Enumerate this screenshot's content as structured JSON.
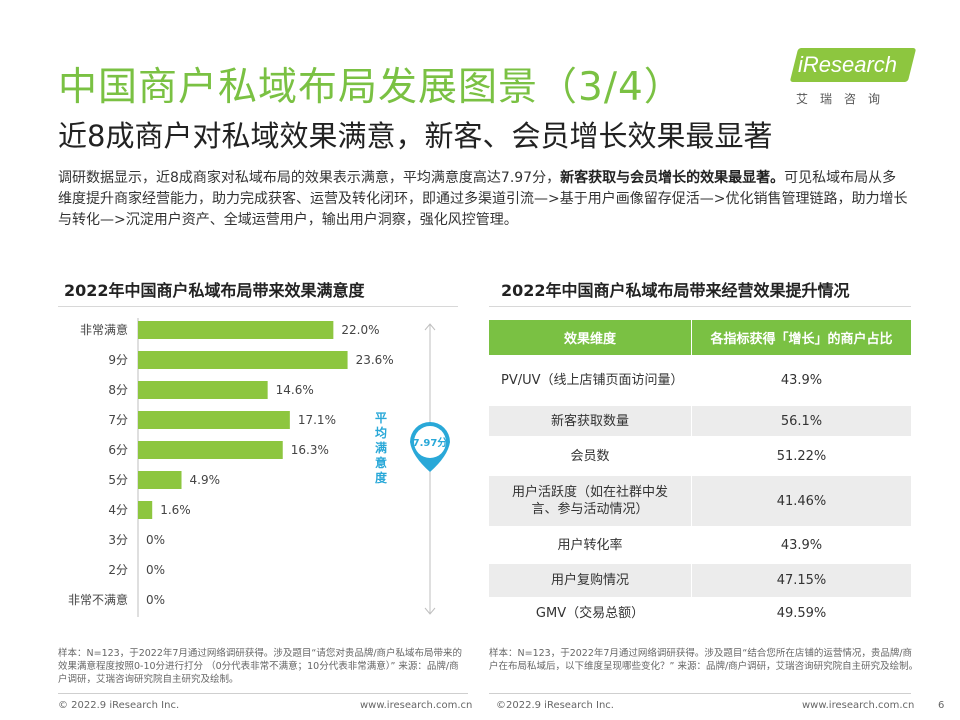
{
  "header": {
    "title": "中国商户私域布局发展图景（3/4）",
    "subtitle": "近8成商户对私域效果满意，新客、会员增长效果最显著",
    "intro_part1": "调研数据显示，近8成商家对私域布局的效果表示满意，平均满意度高达7.97分，",
    "intro_bold": "新客获取与会员增长的效果最显著。",
    "intro_part2": "可见私域布局从多维度提升商家经营能力，助力完成获客、运营及转化闭环，即通过多渠道引流—>基于用户画像留存促活—>优化销售管理链路，助力增长与转化—>沉淀用户资产、全域运营用户，输出用户洞察，强化风控管理。"
  },
  "logo": {
    "brand": "iResearch",
    "sub": "艾瑞咨询"
  },
  "left_section": {
    "title": "2022年中国商户私域布局带来效果满意度",
    "note": "样本：N=123，于2022年7月通过网络调研获得。涉及题目“请您对贵品牌/商户私域布局带来的效果满意程度按照0-10分进行打分 （0分代表非常不满意；10分代表非常满意）” 来源：品牌/商户调研，艾瑞咨询研究院自主研究及绘制。"
  },
  "chart_data": {
    "type": "bar",
    "orientation": "horizontal",
    "categories": [
      "非常满意",
      "9分",
      "8分",
      "7分",
      "6分",
      "5分",
      "4分",
      "3分",
      "2分",
      "非常不满意"
    ],
    "values": [
      22.0,
      23.6,
      14.6,
      17.1,
      16.3,
      4.9,
      1.6,
      0,
      0,
      0
    ],
    "data_labels": [
      "22.0%",
      "23.6%",
      "14.6%",
      "17.1%",
      "16.3%",
      "4.9%",
      "1.6%",
      "0%",
      "0%",
      "0%"
    ],
    "bar_color": "#8dc63f",
    "xlim": [
      0,
      25
    ],
    "average_label": "平均满意度",
    "average_value": "7.97分",
    "average_color": "#29a8d8"
  },
  "right_section": {
    "title": "2022年中国商户私域布局带来经营效果提升情况",
    "table": {
      "headers": [
        "效果维度",
        "各指标获得「增长」的商户占比"
      ],
      "rows": [
        [
          "PV/UV（线上店铺页面访问量）",
          "43.9%"
        ],
        [
          "新客获取数量",
          "56.1%"
        ],
        [
          "会员数",
          "51.22%"
        ],
        [
          "用户活跃度（如在社群中发言、参与活动情况）",
          "41.46%"
        ],
        [
          "用户转化率",
          "43.9%"
        ],
        [
          "用户复购情况",
          "47.15%"
        ],
        [
          "GMV（交易总额）",
          "49.59%"
        ]
      ]
    },
    "note": "样本：N=123，于2022年7月通过网络调研获得。涉及题目“结合您所在店铺的运营情况，贵品牌/商户在布局私域后，以下维度呈现哪些变化？” 来源：品牌/商户调研，艾瑞咨询研究院自主研究及绘制。"
  },
  "footer": {
    "left_copyright": "© 2022.9 iResearch Inc.",
    "left_url": "www.iresearch.com.cn",
    "right_copyright": "©2022.9 iResearch Inc.",
    "right_url": "www.iresearch.com.cn",
    "page_number": "6"
  }
}
